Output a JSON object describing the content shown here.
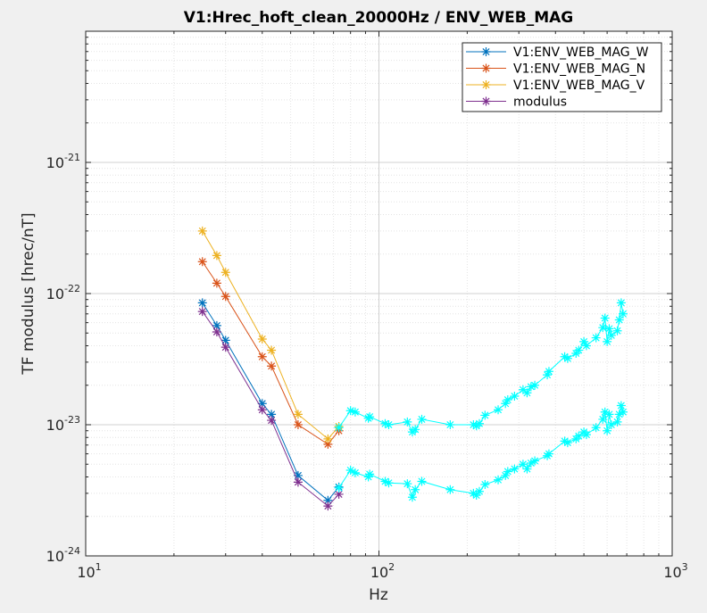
{
  "chart_data": {
    "type": "line",
    "title": "V1:Hrec_hoft_clean_20000Hz / ENV_WEB_MAG",
    "xlabel": "Hz",
    "ylabel": "TF modulus [hrec/nT]",
    "xscale": "log",
    "yscale": "log",
    "xlim": [
      10,
      1000
    ],
    "ylim": [
      1e-24,
      1e-20
    ],
    "x_ticks": [
      {
        "base": "10",
        "exp": "1"
      },
      {
        "base": "10",
        "exp": "2"
      },
      {
        "base": "10",
        "exp": "3"
      }
    ],
    "y_ticks": [
      {
        "base": "10",
        "exp": "-24"
      },
      {
        "base": "10",
        "exp": "-23"
      },
      {
        "base": "10",
        "exp": "-22"
      },
      {
        "base": "10",
        "exp": "-21"
      }
    ],
    "grid": true,
    "legend_position": "top-right",
    "highlight_color": "#00ffff",
    "series": [
      {
        "name": "V1:ENV_WEB_MAG_W",
        "color": "#0072bd",
        "x": [
          25,
          28,
          30,
          40,
          43,
          53,
          67,
          73
        ],
        "y": [
          8.5e-23,
          5.7e-23,
          4.4e-23,
          1.45e-23,
          1.2e-23,
          4.1e-24,
          2.65e-24,
          3.35e-24
        ]
      },
      {
        "name": "V1:ENV_WEB_MAG_N",
        "color": "#d95319",
        "x": [
          25,
          28,
          30,
          40,
          43,
          53,
          67,
          73
        ],
        "y": [
          1.75e-22,
          1.2e-22,
          9.5e-23,
          3.3e-23,
          2.8e-23,
          1e-23,
          7.1e-24,
          9e-24
        ]
      },
      {
        "name": "V1:ENV_WEB_MAG_V",
        "color": "#edb120",
        "x": [
          25,
          28,
          30,
          40,
          43,
          53,
          67,
          73
        ],
        "y": [
          3e-22,
          1.95e-22,
          1.45e-22,
          4.5e-23,
          3.7e-23,
          1.2e-23,
          7.8e-24,
          9.7e-24
        ]
      },
      {
        "name": "modulus",
        "color": "#7e2f8e",
        "x": [
          25,
          28,
          30,
          40,
          43,
          53,
          67,
          73
        ],
        "y": [
          7.3e-23,
          5.1e-23,
          3.9e-23,
          1.3e-23,
          1.08e-23,
          3.65e-24,
          2.4e-24,
          2.95e-24
        ]
      }
    ],
    "highlight_series": [
      {
        "x": [
          73,
          80,
          83,
          92,
          93,
          105,
          108,
          125,
          130,
          133,
          140,
          175,
          210,
          215,
          220,
          230,
          255,
          270,
          275,
          290,
          310,
          320,
          330,
          340,
          375,
          380,
          430,
          440,
          470,
          480,
          500,
          510,
          550,
          580,
          590,
          600,
          610,
          620,
          650,
          660,
          670,
          680
        ],
        "y": [
          9.5e-24,
          1.28e-23,
          1.25e-23,
          1.12e-23,
          1.15e-23,
          1.02e-23,
          1e-23,
          1.05e-23,
          8.8e-24,
          9.2e-24,
          1.1e-23,
          1e-23,
          1e-23,
          9.8e-24,
          1.02e-23,
          1.18e-23,
          1.3e-23,
          1.45e-23,
          1.55e-23,
          1.65e-23,
          1.85e-23,
          1.75e-23,
          1.95e-23,
          2e-23,
          2.4e-23,
          2.55e-23,
          3.3e-23,
          3.2e-23,
          3.5e-23,
          3.7e-23,
          4.3e-23,
          4e-23,
          4.6e-23,
          5.5e-23,
          6.5e-23,
          4.3e-23,
          5.4e-23,
          4.8e-23,
          5.2e-23,
          6.3e-23,
          8.5e-23,
          7e-23
        ]
      },
      {
        "x": [
          73,
          80,
          83,
          92,
          93,
          105,
          108,
          125,
          130,
          133,
          140,
          175,
          210,
          215,
          220,
          230,
          255,
          270,
          275,
          290,
          310,
          320,
          330,
          340,
          375,
          380,
          430,
          440,
          470,
          480,
          500,
          510,
          550,
          580,
          590,
          600,
          610,
          620,
          650,
          660,
          670,
          680
        ],
        "y": [
          3.3e-24,
          4.5e-24,
          4.3e-24,
          4e-24,
          4.2e-24,
          3.7e-24,
          3.6e-24,
          3.55e-24,
          2.8e-24,
          3.2e-24,
          3.7e-24,
          3.2e-24,
          3e-24,
          2.9e-24,
          3.1e-24,
          3.5e-24,
          3.8e-24,
          4.1e-24,
          4.4e-24,
          4.6e-24,
          5e-24,
          4.6e-24,
          5.1e-24,
          5.3e-24,
          5.8e-24,
          6e-24,
          7.5e-24,
          7.3e-24,
          7.8e-24,
          8.2e-24,
          8.8e-24,
          8.4e-24,
          9.5e-24,
          1.1e-23,
          1.25e-23,
          9e-24,
          1.2e-23,
          1e-23,
          1.05e-23,
          1.2e-23,
          1.4e-23,
          1.25e-23
        ]
      }
    ]
  }
}
